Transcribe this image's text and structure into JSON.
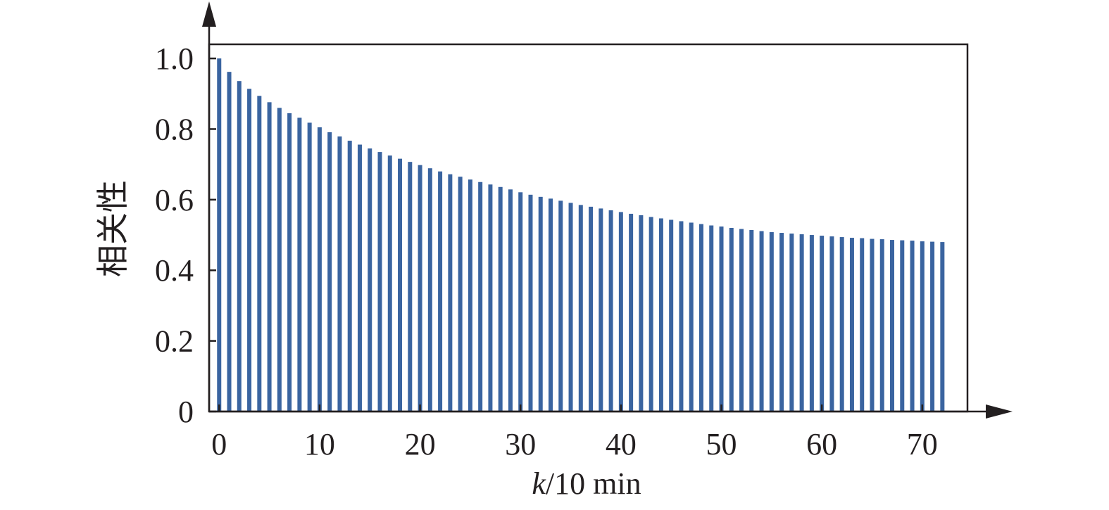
{
  "chart_data": {
    "type": "bar",
    "ylabel": "相关性",
    "xlabel": "k/10 min",
    "xlabel_italic_part": "k",
    "xlabel_rest": "/10 min",
    "xlim": [
      -1,
      74.5
    ],
    "ylim": [
      0,
      1.04
    ],
    "x_ticks": [
      0,
      10,
      20,
      30,
      40,
      50,
      60,
      70
    ],
    "y_ticks": [
      0,
      0.2,
      0.4,
      0.6,
      0.8,
      1.0
    ],
    "y_tick_labels": [
      "0",
      "0.2",
      "0.4",
      "0.6",
      "0.8",
      "1.0"
    ],
    "grid": false,
    "bar_color": "#3a64a0",
    "x": [
      0,
      1,
      2,
      3,
      4,
      5,
      6,
      7,
      8,
      9,
      10,
      11,
      12,
      13,
      14,
      15,
      16,
      17,
      18,
      19,
      20,
      21,
      22,
      23,
      24,
      25,
      26,
      27,
      28,
      29,
      30,
      31,
      32,
      33,
      34,
      35,
      36,
      37,
      38,
      39,
      40,
      41,
      42,
      43,
      44,
      45,
      46,
      47,
      48,
      49,
      50,
      51,
      52,
      53,
      54,
      55,
      56,
      57,
      58,
      59,
      60,
      61,
      62,
      63,
      64,
      65,
      66,
      67,
      68,
      69,
      70,
      71,
      72
    ],
    "values": [
      1.0,
      0.962,
      0.936,
      0.914,
      0.894,
      0.876,
      0.86,
      0.845,
      0.832,
      0.818,
      0.805,
      0.791,
      0.779,
      0.767,
      0.756,
      0.745,
      0.735,
      0.725,
      0.716,
      0.707,
      0.698,
      0.689,
      0.68,
      0.672,
      0.665,
      0.657,
      0.65,
      0.643,
      0.636,
      0.629,
      0.621,
      0.614,
      0.608,
      0.603,
      0.597,
      0.591,
      0.585,
      0.58,
      0.575,
      0.57,
      0.565,
      0.56,
      0.556,
      0.551,
      0.547,
      0.543,
      0.539,
      0.535,
      0.531,
      0.527,
      0.524,
      0.52,
      0.517,
      0.514,
      0.511,
      0.508,
      0.506,
      0.504,
      0.502,
      0.5,
      0.498,
      0.496,
      0.494,
      0.492,
      0.491,
      0.489,
      0.488,
      0.486,
      0.485,
      0.484,
      0.482,
      0.481,
      0.48
    ]
  }
}
